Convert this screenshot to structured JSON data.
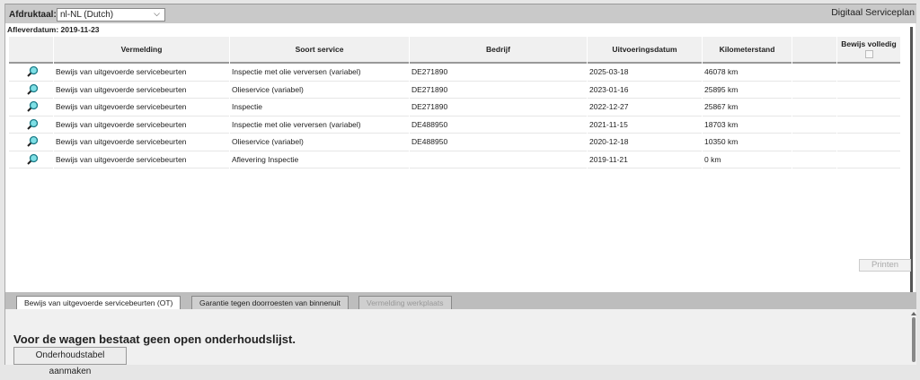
{
  "header": {
    "lang_label": "Afdruktaal:",
    "lang_value": "nl-NL (Dutch)",
    "app_title": "Digitaal Serviceplan",
    "delivery_date": "Afleverdatum: 2019-11-23"
  },
  "table": {
    "columns": [
      "",
      "Vermelding",
      "Soort service",
      "Bedrijf",
      "Uitvoeringsdatum",
      "Kilometerstand",
      "",
      "Bewijs volledig"
    ],
    "rows": [
      {
        "vermelding": "Bewijs van uitgevoerde servicebeurten",
        "soort": "Inspectie met olie verversen (variabel)",
        "bedrijf": "DE271890",
        "datum": "2025-03-18",
        "km": "46078 km"
      },
      {
        "vermelding": "Bewijs van uitgevoerde servicebeurten",
        "soort": "Olieservice (variabel)",
        "bedrijf": "DE271890",
        "datum": "2023-01-16",
        "km": "25895 km"
      },
      {
        "vermelding": "Bewijs van uitgevoerde servicebeurten",
        "soort": "Inspectie",
        "bedrijf": "DE271890",
        "datum": "2022-12-27",
        "km": "25867 km"
      },
      {
        "vermelding": "Bewijs van uitgevoerde servicebeurten",
        "soort": "Inspectie met olie verversen (variabel)",
        "bedrijf": "DE488950",
        "datum": "2021-11-15",
        "km": "18703 km"
      },
      {
        "vermelding": "Bewijs van uitgevoerde servicebeurten",
        "soort": "Olieservice (variabel)",
        "bedrijf": "DE488950",
        "datum": "2020-12-18",
        "km": "10350 km"
      },
      {
        "vermelding": "Bewijs van uitgevoerde servicebeurten",
        "soort": "Aflevering Inspectie",
        "bedrijf": "",
        "datum": "2019-11-21",
        "km": "0 km"
      }
    ]
  },
  "print_label": "Printen",
  "tabs": [
    {
      "label": "Bewijs van uitgevoerde servicebeurten (OT)",
      "state": "active"
    },
    {
      "label": "Garantie tegen doorroesten van binnenuit",
      "state": "normal"
    },
    {
      "label": "Vermelding werkplaats",
      "state": "disabled"
    }
  ],
  "bottom": {
    "message": "Voor de wagen bestaat geen open onderhoudslijst.",
    "create_label": "Onderhoudstabel aanmaken"
  }
}
